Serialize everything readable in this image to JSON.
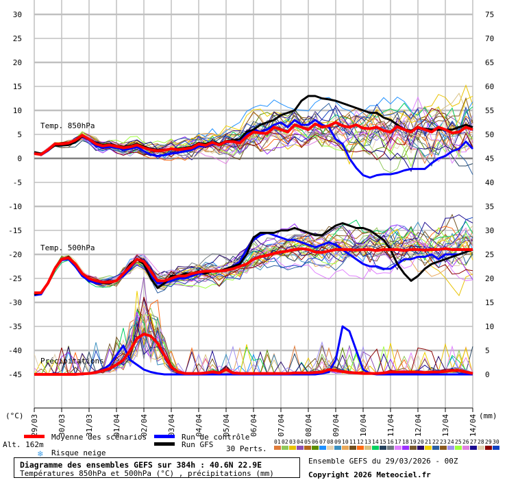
{
  "chart_data": {
    "type": "line",
    "title": "Diagramme des ensembles GEFS sur 384h : 40.6N 22.9E",
    "subtitle": "Températures 850hPa et 500hPa (°C) , précipitations (mm)",
    "left_axis_label": "(°C)",
    "right_axis_label": "(mm)",
    "left_ticks": [
      30,
      25,
      20,
      15,
      10,
      5,
      0,
      -5,
      -10,
      -15,
      -20,
      -25,
      -30,
      -35,
      -40,
      -45
    ],
    "right_ticks": [
      75,
      70,
      65,
      60,
      55,
      50,
      45,
      40,
      35,
      30,
      25,
      20,
      15,
      10,
      5,
      0
    ],
    "ylim_left": [
      -45,
      30
    ],
    "ylim_right": [
      0,
      75
    ],
    "x_tick_labels": [
      "29/03",
      "30/03",
      "31/03",
      "01/04",
      "02/04",
      "03/04",
      "04/04",
      "05/04",
      "06/04",
      "07/04",
      "08/04",
      "09/04",
      "10/04",
      "11/04",
      "12/04",
      "13/04",
      "14/04"
    ],
    "time_step_hours": 6,
    "grid": true,
    "panel_labels": {
      "t850": "Temp. 850hPa",
      "t500": "Temp. 500hPa",
      "precip": "Précipitations"
    },
    "series": [
      {
        "name": "Moyenne des scénarios - T850",
        "color": "#ff0000",
        "values": [
          1,
          0.8,
          1.8,
          3,
          3,
          3.2,
          3.8,
          4.8,
          4,
          3,
          2.6,
          2.8,
          2.5,
          2.2,
          2.4,
          2.8,
          2.2,
          1.8,
          1.6,
          1.7,
          2,
          1.8,
          2,
          2.2,
          3,
          2.7,
          3.3,
          2.8,
          3.5,
          3.5,
          3.2,
          4.5,
          5.5,
          5.3,
          5.2,
          6.5,
          6,
          5.5,
          7,
          6.5,
          6,
          7.2,
          6.5,
          6.8,
          7.5,
          6.8,
          6.5,
          7,
          6.3,
          6.2,
          6.5,
          5.8,
          5.5,
          6.6,
          6,
          5.5,
          6.5,
          6,
          5.5,
          6.5,
          6,
          5.3,
          5.5,
          6.5,
          6
        ]
      },
      {
        "name": "Run de contrôle - T850",
        "color": "#0000ff",
        "values": [
          1.2,
          0.7,
          1.6,
          2.8,
          2.8,
          3,
          3.6,
          4.6,
          3.8,
          2.6,
          2.2,
          2.4,
          2.2,
          1.8,
          2,
          2.4,
          1.5,
          0.8,
          0.5,
          0.7,
          1,
          1.2,
          1.5,
          1.8,
          2.5,
          2.5,
          3,
          2.8,
          3.3,
          3.5,
          3.5,
          5,
          6,
          5.5,
          6,
          7,
          7.5,
          6.5,
          8,
          7,
          7,
          8,
          7,
          6.5,
          4,
          3,
          0,
          -2,
          -3.5,
          -4,
          -3.5,
          -3.3,
          -3.3,
          -3,
          -2.5,
          -2.2,
          -2.2,
          -2.2,
          -1,
          0,
          0.5,
          1.5,
          2,
          3.5,
          2
        ]
      },
      {
        "name": "Run GFS - T850",
        "color": "#000000",
        "values": [
          1.3,
          1,
          1.7,
          2.7,
          2.7,
          2.8,
          3.4,
          4.6,
          4,
          3.2,
          2.8,
          3,
          2.6,
          2.4,
          2.6,
          3,
          2.5,
          2,
          1.8,
          1.8,
          2,
          2,
          2.2,
          2.4,
          3.2,
          3,
          3.4,
          3,
          3.6,
          3.8,
          4,
          5.5,
          6,
          7,
          7.5,
          8,
          9,
          9.5,
          10,
          12,
          13,
          13,
          12.5,
          12.3,
          12,
          11.5,
          11,
          10.5,
          10,
          9.5,
          9.5,
          8.5,
          8,
          7,
          6,
          5.8,
          6.3,
          6.2,
          6,
          6,
          6,
          6,
          6.5,
          7,
          6.5
        ]
      },
      {
        "name": "Moyenne des scénarios - T500",
        "color": "#ff0000",
        "values": [
          -28,
          -28,
          -26,
          -23,
          -21,
          -20.7,
          -22,
          -24,
          -25,
          -25.5,
          -25.8,
          -25.8,
          -25.5,
          -24,
          -22.5,
          -21,
          -21.5,
          -23.5,
          -25.5,
          -25.5,
          -25,
          -24.5,
          -24.5,
          -24,
          -23.7,
          -23.5,
          -23.5,
          -23.5,
          -23.3,
          -23,
          -22.5,
          -22,
          -21,
          -20.5,
          -20.2,
          -19.8,
          -19.5,
          -19.3,
          -19,
          -18.8,
          -19,
          -19.5,
          -19.6,
          -19.3,
          -19,
          -19,
          -19,
          -19.1,
          -19,
          -19,
          -19.2,
          -19,
          -19,
          -19,
          -19.2,
          -19,
          -19,
          -19.1,
          -19,
          -19,
          -18.8,
          -19,
          -19,
          -19,
          -19
        ]
      },
      {
        "name": "Run de contrôle - T500",
        "color": "#0000ff",
        "values": [
          -28.5,
          -28.3,
          -26,
          -23,
          -21.2,
          -21,
          -22.5,
          -24.5,
          -25.5,
          -26,
          -26,
          -26,
          -25.5,
          -24.5,
          -23,
          -21,
          -22,
          -24.5,
          -26,
          -26,
          -25.5,
          -25,
          -25,
          -24.5,
          -24,
          -24,
          -23.5,
          -23.5,
          -23,
          -22.5,
          -21.5,
          -19,
          -17,
          -16,
          -15.5,
          -16,
          -16.5,
          -17,
          -17,
          -17.5,
          -18,
          -18.5,
          -18,
          -17.5,
          -18,
          -19,
          -20,
          -21,
          -22,
          -22.5,
          -22.5,
          -23,
          -23,
          -22,
          -21,
          -21,
          -20.5,
          -20.5,
          -20,
          -21,
          -20,
          -20,
          -20,
          -19.5,
          -19
        ]
      },
      {
        "name": "Run GFS - T500",
        "color": "#000000",
        "values": [
          -28.3,
          -28,
          -26,
          -23,
          -21,
          -20.5,
          -22,
          -24,
          -25,
          -25.5,
          -26,
          -26,
          -25.5,
          -24,
          -22,
          -21,
          -22,
          -25,
          -27,
          -26,
          -24.5,
          -24.5,
          -24,
          -24,
          -23.5,
          -24,
          -23.5,
          -23.5,
          -23,
          -22.5,
          -22,
          -20,
          -16.5,
          -15.5,
          -15.5,
          -15.5,
          -15,
          -15,
          -14.5,
          -15,
          -15.5,
          -16,
          -16,
          -15,
          -14,
          -13.5,
          -14,
          -14.5,
          -14.5,
          -15,
          -16,
          -17,
          -19,
          -22,
          -24,
          -25.5,
          -24.5,
          -23,
          -22,
          -21.5,
          -21,
          -20.5,
          -20,
          -19.5,
          -19
        ]
      },
      {
        "name": "Moyenne des scénarios - Précipitations",
        "color": "#ff0000",
        "values": [
          0,
          0,
          0,
          0,
          0,
          0,
          0,
          0.1,
          0.2,
          0.4,
          0.8,
          1.2,
          2,
          3,
          5,
          7.5,
          8.4,
          8,
          6.5,
          4,
          1.5,
          0.5,
          0.2,
          0.2,
          0.2,
          0.3,
          0.5,
          0.3,
          1,
          0.3,
          0.2,
          0.2,
          0.2,
          0.2,
          0.2,
          0.2,
          0.2,
          0.2,
          0.3,
          0.3,
          0.3,
          0.4,
          0.5,
          1,
          0.8,
          0.6,
          0.4,
          0.3,
          0.2,
          0.2,
          0.2,
          0.3,
          0.5,
          0.5,
          0.5,
          0.5,
          0.5,
          0.4,
          0.5,
          0.5,
          0.6,
          0.8,
          0.8,
          0.5,
          0.2
        ]
      },
      {
        "name": "Run de contrôle - Précipitations",
        "color": "#0000ff",
        "values": [
          0,
          0,
          0,
          0,
          0,
          0,
          0,
          0,
          0.2,
          0.5,
          1,
          2,
          4,
          6,
          3,
          2,
          1,
          0.5,
          0.2,
          0,
          0,
          0,
          0,
          0,
          0,
          0,
          0,
          0,
          0,
          0,
          0,
          0,
          0,
          0,
          0,
          0,
          0,
          0,
          0,
          0,
          0,
          0,
          0.2,
          0.5,
          3,
          10,
          9,
          5,
          1,
          0.2,
          0,
          0,
          0,
          0,
          0,
          0,
          0,
          0,
          0,
          0,
          0,
          0,
          0,
          0,
          0
        ]
      }
    ]
  },
  "footer": {
    "alt_label": "Alt. 162m",
    "legend_mean": "Moyenne des scénarios",
    "legend_control": "Run de contrôle",
    "legend_gfs": "Run GFS",
    "legend_snow": "Risque neige",
    "perts_label": "30 Perts.",
    "run_info": "Ensemble GEFS du 29/03/2026 - 00Z",
    "copyright": "Copyright 2026 Meteociel.fr"
  },
  "members": [
    {
      "id": "01",
      "color": "#e07b39"
    },
    {
      "id": "02",
      "color": "#8fc75a"
    },
    {
      "id": "03",
      "color": "#e8c200"
    },
    {
      "id": "04",
      "color": "#8e4fb0"
    },
    {
      "id": "05",
      "color": "#b5651d"
    },
    {
      "id": "06",
      "color": "#5b8c00"
    },
    {
      "id": "07",
      "color": "#1e90ff"
    },
    {
      "id": "08",
      "color": "#e6d3b3"
    },
    {
      "id": "09",
      "color": "#3b8fbf"
    },
    {
      "id": "10",
      "color": "#e8a85a"
    },
    {
      "id": "11",
      "color": "#705020"
    },
    {
      "id": "12",
      "color": "#ff6a13"
    },
    {
      "id": "13",
      "color": "#d8c080"
    },
    {
      "id": "14",
      "color": "#00d060"
    },
    {
      "id": "15",
      "color": "#25435f"
    },
    {
      "id": "16",
      "color": "#707a80"
    },
    {
      "id": "17",
      "color": "#e080ff"
    },
    {
      "id": "18",
      "color": "#9b30ff"
    },
    {
      "id": "19",
      "color": "#7a5a30"
    },
    {
      "id": "20",
      "color": "#2a0a6a"
    },
    {
      "id": "21",
      "color": "#f0d000"
    },
    {
      "id": "22",
      "color": "#2b5fa0"
    },
    {
      "id": "23",
      "color": "#8a5a20"
    },
    {
      "id": "24",
      "color": "#a090f0"
    },
    {
      "id": "25",
      "color": "#a0ff40"
    },
    {
      "id": "26",
      "color": "#e080e0"
    },
    {
      "id": "27",
      "color": "#1a0a90"
    },
    {
      "id": "28",
      "color": "#e0d0b0"
    },
    {
      "id": "29",
      "color": "#8b0000"
    },
    {
      "id": "30",
      "color": "#1040c0"
    }
  ]
}
